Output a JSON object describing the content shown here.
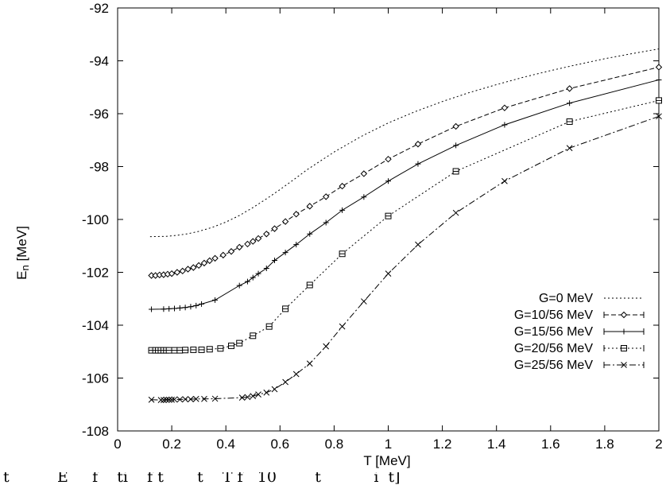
{
  "chart_data": {
    "type": "line",
    "title": "",
    "xlabel": "T [MeV]",
    "ylabel_main": "E",
    "ylabel_sub": "n",
    "ylabel_unit": " [MeV]",
    "xlim": [
      0,
      2
    ],
    "ylim": [
      -108,
      -92
    ],
    "x_ticks": [
      0,
      0.2,
      0.4,
      0.6,
      0.8,
      1,
      1.2,
      1.4,
      1.6,
      1.8,
      2
    ],
    "x_tick_labels": [
      "0",
      "0.2",
      "0.4",
      "0.6",
      "0.8",
      "1",
      "1.2",
      "1.4",
      "1.6",
      "1.8",
      "2"
    ],
    "y_ticks": [
      -108,
      -106,
      -104,
      -102,
      -100,
      -98,
      -96,
      -94,
      -92
    ],
    "y_tick_labels": [
      "-108",
      "-106",
      "-104",
      "-102",
      "-100",
      "-98",
      "-96",
      "-94",
      "-92"
    ],
    "grid": false,
    "legend_position": "bottom-right",
    "caption": "t          E     f    ti    f t       t    T f   10        t           i  t]",
    "series": [
      {
        "name": "G=0 MeV",
        "style": "dotted",
        "marker": "none",
        "x": [
          0.12,
          0.18,
          0.22,
          0.26,
          0.3,
          0.35,
          0.4,
          0.45,
          0.5,
          0.55,
          0.6,
          0.65,
          0.7,
          0.8,
          0.9,
          1.0,
          1.1,
          1.2,
          1.3,
          1.4,
          1.5,
          1.6,
          1.7,
          1.8,
          1.9,
          2.0
        ],
        "y": [
          -100.65,
          -100.64,
          -100.6,
          -100.54,
          -100.45,
          -100.3,
          -100.1,
          -99.85,
          -99.55,
          -99.22,
          -98.87,
          -98.5,
          -98.12,
          -97.45,
          -96.86,
          -96.35,
          -95.92,
          -95.54,
          -95.2,
          -94.9,
          -94.62,
          -94.37,
          -94.14,
          -93.92,
          -93.73,
          -93.55
        ]
      },
      {
        "name": "G=10/56 MeV",
        "style": "dashed",
        "marker": "diamond",
        "x": [
          0.125,
          0.14,
          0.155,
          0.17,
          0.185,
          0.2,
          0.22,
          0.24,
          0.26,
          0.28,
          0.3,
          0.32,
          0.34,
          0.36,
          0.39,
          0.42,
          0.45,
          0.48,
          0.5,
          0.52,
          0.55,
          0.58,
          0.62,
          0.66,
          0.71,
          0.77,
          0.83,
          0.91,
          1.0,
          1.11,
          1.25,
          1.43,
          1.67,
          2.0
        ],
        "y": [
          -102.12,
          -102.12,
          -102.1,
          -102.09,
          -102.07,
          -102.05,
          -102.0,
          -101.95,
          -101.88,
          -101.82,
          -101.74,
          -101.65,
          -101.56,
          -101.47,
          -101.35,
          -101.21,
          -101.05,
          -100.93,
          -100.83,
          -100.72,
          -100.55,
          -100.35,
          -100.08,
          -99.8,
          -99.5,
          -99.14,
          -98.74,
          -98.27,
          -97.72,
          -97.15,
          -96.48,
          -95.78,
          -95.05,
          -94.24
        ]
      },
      {
        "name": "G=15/56 MeV",
        "style": "solid",
        "marker": "plus",
        "x": [
          0.125,
          0.17,
          0.19,
          0.21,
          0.23,
          0.25,
          0.27,
          0.29,
          0.31,
          0.36,
          0.45,
          0.48,
          0.5,
          0.52,
          0.55,
          0.58,
          0.62,
          0.66,
          0.71,
          0.77,
          0.83,
          0.91,
          1.0,
          1.11,
          1.25,
          1.43,
          1.67,
          2.0
        ],
        "y": [
          -103.4,
          -103.39,
          -103.38,
          -103.37,
          -103.35,
          -103.33,
          -103.3,
          -103.26,
          -103.2,
          -103.05,
          -102.5,
          -102.35,
          -102.2,
          -102.05,
          -101.85,
          -101.55,
          -101.25,
          -100.95,
          -100.55,
          -100.12,
          -99.65,
          -99.15,
          -98.55,
          -97.9,
          -97.2,
          -96.42,
          -95.6,
          -94.72
        ]
      },
      {
        "name": "G=20/56 MeV",
        "style": "dotted",
        "marker": "square",
        "x": [
          0.125,
          0.14,
          0.15,
          0.16,
          0.17,
          0.18,
          0.19,
          0.21,
          0.23,
          0.25,
          0.28,
          0.31,
          0.34,
          0.38,
          0.42,
          0.45,
          0.5,
          0.56,
          0.62,
          0.71,
          0.83,
          1.0,
          1.25,
          1.67,
          2.0
        ],
        "y": [
          -104.95,
          -104.95,
          -104.95,
          -104.95,
          -104.95,
          -104.95,
          -104.95,
          -104.95,
          -104.95,
          -104.94,
          -104.93,
          -104.93,
          -104.91,
          -104.88,
          -104.78,
          -104.68,
          -104.4,
          -104.05,
          -103.38,
          -102.48,
          -101.3,
          -99.87,
          -98.18,
          -96.3,
          -95.5
        ]
      },
      {
        "name": "G=25/56 MeV",
        "style": "dashdot",
        "marker": "cross",
        "x": [
          0.125,
          0.16,
          0.17,
          0.18,
          0.19,
          0.2,
          0.21,
          0.23,
          0.25,
          0.27,
          0.29,
          0.32,
          0.36,
          0.46,
          0.48,
          0.5,
          0.52,
          0.55,
          0.58,
          0.62,
          0.66,
          0.71,
          0.77,
          0.83,
          0.91,
          1.0,
          1.11,
          1.25,
          1.43,
          1.67,
          2.0
        ],
        "y": [
          -106.82,
          -106.83,
          -106.83,
          -106.82,
          -106.82,
          -106.82,
          -106.81,
          -106.81,
          -106.8,
          -106.8,
          -106.79,
          -106.79,
          -106.78,
          -106.74,
          -106.72,
          -106.68,
          -106.62,
          -106.55,
          -106.42,
          -106.15,
          -105.85,
          -105.45,
          -104.8,
          -104.05,
          -103.1,
          -102.05,
          -100.95,
          -99.75,
          -98.55,
          -97.3,
          -96.1
        ]
      }
    ]
  }
}
